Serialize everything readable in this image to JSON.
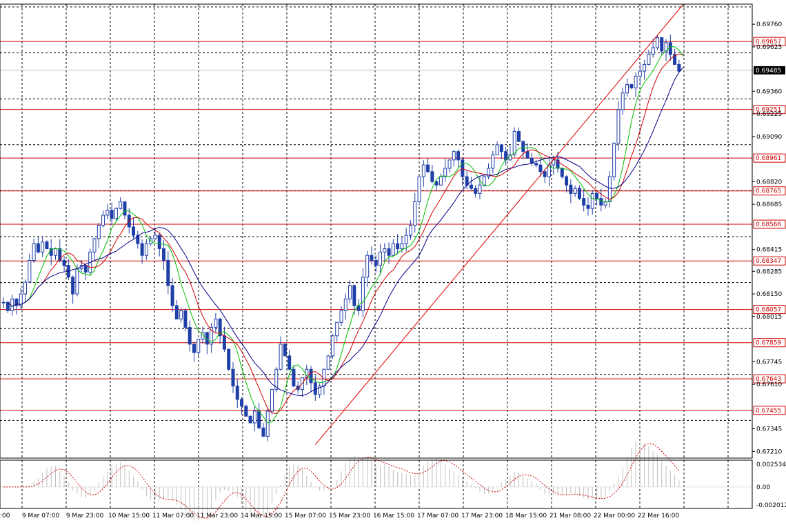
{
  "colors": {
    "candle": "#1f3fa8",
    "ma_fast": "#00c000",
    "ma_mid": "#d00000",
    "ma_slow": "#00008b",
    "level_line": "#d00000",
    "trend_line": "#e00000",
    "grid": "#000000",
    "osc_hist": "#c0c0c0",
    "osc_signal": "#d00000",
    "current_price_box": "#000000"
  },
  "chart_data": [
    {
      "type": "candlestick",
      "instrument_note": "",
      "ylim": [
        0.6717,
        0.6988
      ],
      "y_tick_labels": [
        "0.69760",
        "0.69625",
        "0.69360",
        "0.69225",
        "0.69090",
        "0.68820",
        "0.68685",
        "0.68415",
        "0.68285",
        "0.68150",
        "0.68015",
        "0.67745",
        "0.67610",
        "0.67345",
        "0.67210"
      ],
      "x_tick_labels": [
        "9 Mar 07:00",
        "9 Mar 23:00",
        "10 Mar 15:00",
        "11 Mar 07:00",
        "11 Mar 23:00",
        "14 Mar 15:00",
        "15 Mar 07:00",
        "15 Mar 23:00",
        "16 Mar 15:00",
        "17 Mar 07:00",
        "17 Mar 23:00",
        "18 Mar 15:00",
        "21 Mar 08:00",
        "22 Mar 00:00",
        "22 Mar 16:00"
      ],
      "x_tick_left_partial": ":00",
      "current_price": "0.69485",
      "horizontal_levels": [
        "0.69657",
        "0.69251",
        "0.68961",
        "0.68765",
        "0.68566",
        "0.68347",
        "0.68057",
        "0.67859",
        "0.67643",
        "0.67455"
      ],
      "price_path": [
        [
          0,
          0.681
        ],
        [
          1,
          0.6805
        ],
        [
          2,
          0.6812
        ],
        [
          3,
          0.6808
        ],
        [
          4,
          0.6815
        ],
        [
          5,
          0.6822
        ],
        [
          6,
          0.6835
        ],
        [
          7,
          0.6845
        ],
        [
          8,
          0.684
        ],
        [
          9,
          0.6846
        ],
        [
          10,
          0.6842
        ],
        [
          11,
          0.6838
        ],
        [
          12,
          0.6842
        ],
        [
          13,
          0.6835
        ],
        [
          14,
          0.6832
        ],
        [
          15,
          0.6825
        ],
        [
          16,
          0.6815
        ],
        [
          17,
          0.683
        ],
        [
          18,
          0.6832
        ],
        [
          19,
          0.6828
        ],
        [
          20,
          0.684
        ],
        [
          21,
          0.6848
        ],
        [
          22,
          0.6856
        ],
        [
          23,
          0.6862
        ],
        [
          24,
          0.6865
        ],
        [
          25,
          0.686
        ],
        [
          26,
          0.6866
        ],
        [
          27,
          0.687
        ],
        [
          28,
          0.6862
        ],
        [
          29,
          0.6855
        ],
        [
          30,
          0.685
        ],
        [
          31,
          0.6845
        ],
        [
          32,
          0.6838
        ],
        [
          33,
          0.6845
        ],
        [
          34,
          0.6848
        ],
        [
          35,
          0.685
        ],
        [
          36,
          0.6842
        ],
        [
          37,
          0.6835
        ],
        [
          38,
          0.682
        ],
        [
          39,
          0.6808
        ],
        [
          40,
          0.68
        ],
        [
          41,
          0.6805
        ],
        [
          42,
          0.6795
        ],
        [
          43,
          0.6785
        ],
        [
          44,
          0.678
        ],
        [
          45,
          0.6788
        ],
        [
          46,
          0.6792
        ],
        [
          47,
          0.6785
        ],
        [
          48,
          0.6795
        ],
        [
          49,
          0.68
        ],
        [
          50,
          0.679
        ],
        [
          51,
          0.6782
        ],
        [
          52,
          0.677
        ],
        [
          53,
          0.676
        ],
        [
          54,
          0.6752
        ],
        [
          55,
          0.6748
        ],
        [
          56,
          0.6742
        ],
        [
          57,
          0.6738
        ],
        [
          58,
          0.6745
        ],
        [
          59,
          0.6735
        ],
        [
          60,
          0.673
        ],
        [
          61,
          0.6745
        ],
        [
          62,
          0.6758
        ],
        [
          63,
          0.677
        ],
        [
          64,
          0.6785
        ],
        [
          65,
          0.6778
        ],
        [
          66,
          0.677
        ],
        [
          67,
          0.676
        ],
        [
          68,
          0.6758
        ],
        [
          69,
          0.6765
        ],
        [
          70,
          0.677
        ],
        [
          71,
          0.6762
        ],
        [
          72,
          0.6755
        ],
        [
          73,
          0.676
        ],
        [
          74,
          0.677
        ],
        [
          75,
          0.6778
        ],
        [
          76,
          0.679
        ],
        [
          77,
          0.6798
        ],
        [
          78,
          0.6805
        ],
        [
          79,
          0.6812
        ],
        [
          80,
          0.682
        ],
        [
          81,
          0.6808
        ],
        [
          82,
          0.6805
        ],
        [
          83,
          0.6825
        ],
        [
          84,
          0.6838
        ],
        [
          85,
          0.6835
        ],
        [
          86,
          0.6832
        ],
        [
          87,
          0.684
        ],
        [
          88,
          0.6842
        ],
        [
          89,
          0.6838
        ],
        [
          90,
          0.6845
        ],
        [
          91,
          0.6842
        ],
        [
          92,
          0.6845
        ],
        [
          93,
          0.685
        ],
        [
          94,
          0.6856
        ],
        [
          95,
          0.687
        ],
        [
          96,
          0.6885
        ],
        [
          97,
          0.6892
        ],
        [
          98,
          0.6888
        ],
        [
          99,
          0.6882
        ],
        [
          100,
          0.688
        ],
        [
          101,
          0.6885
        ],
        [
          102,
          0.689
        ],
        [
          103,
          0.6895
        ],
        [
          104,
          0.69
        ],
        [
          105,
          0.6895
        ],
        [
          106,
          0.6885
        ],
        [
          107,
          0.688
        ],
        [
          108,
          0.6878
        ],
        [
          109,
          0.6875
        ],
        [
          110,
          0.688
        ],
        [
          111,
          0.6885
        ],
        [
          112,
          0.689
        ],
        [
          113,
          0.6898
        ],
        [
          114,
          0.6904
        ],
        [
          115,
          0.69
        ],
        [
          116,
          0.6895
        ],
        [
          117,
          0.6898
        ],
        [
          118,
          0.6912
        ],
        [
          119,
          0.6906
        ],
        [
          120,
          0.69
        ],
        [
          121,
          0.6896
        ],
        [
          122,
          0.6893
        ],
        [
          123,
          0.6892
        ],
        [
          124,
          0.6888
        ],
        [
          125,
          0.6885
        ],
        [
          126,
          0.6892
        ],
        [
          127,
          0.6895
        ],
        [
          128,
          0.689
        ],
        [
          129,
          0.6885
        ],
        [
          130,
          0.688
        ],
        [
          131,
          0.6875
        ],
        [
          132,
          0.6878
        ],
        [
          133,
          0.6872
        ],
        [
          134,
          0.6868
        ],
        [
          135,
          0.6866
        ],
        [
          136,
          0.6875
        ],
        [
          137,
          0.6872
        ],
        [
          138,
          0.6868
        ],
        [
          139,
          0.687
        ],
        [
          140,
          0.6885
        ],
        [
          141,
          0.6905
        ],
        [
          142,
          0.6925
        ],
        [
          143,
          0.6935
        ],
        [
          144,
          0.694
        ],
        [
          145,
          0.6938
        ],
        [
          146,
          0.6945
        ],
        [
          147,
          0.6948
        ],
        [
          148,
          0.6952
        ],
        [
          149,
          0.6958
        ],
        [
          150,
          0.6962
        ],
        [
          151,
          0.6968
        ],
        [
          152,
          0.696
        ],
        [
          153,
          0.6965
        ],
        [
          154,
          0.6958
        ],
        [
          155,
          0.6952
        ],
        [
          156,
          0.6948
        ]
      ],
      "x_count": 157,
      "oscillator": {
        "y_tick_labels": [
          "0.002534",
          "0.00",
          "-0.002012"
        ],
        "ylim": [
          -0.0024,
          0.003
        ]
      },
      "annotations": {
        "trend_line_from": [
          72,
          0.6725
        ],
        "trend_line_to": [
          157,
          0.6988
        ],
        "horizontal_levels_style": "red solid lines with boxed labels on price axis"
      }
    }
  ]
}
